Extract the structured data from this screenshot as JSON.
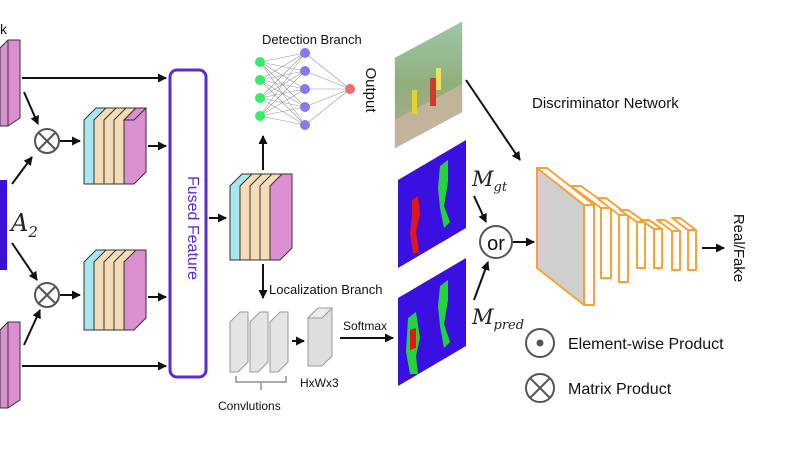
{
  "labels": {
    "top_left_fragment": "k",
    "a2_base": "A",
    "a2_sub": "2",
    "fused_feature": "Fused Feature",
    "detection_branch": "Detection Branch",
    "output": "Output",
    "localization_branch": "Localization Branch",
    "softmax": "Softmax",
    "hxwx3": "HxWx3",
    "convolutions": "Convlutions",
    "m_gt_base": "M",
    "m_gt_sub": "gt",
    "m_pred_base": "M",
    "m_pred_sub": "pred",
    "or": "or",
    "discriminator_network": "Discriminator Network",
    "real_fake": "Real/Fake",
    "legend_elementwise": "Element-wise Product",
    "legend_matrix": "Matrix Product"
  },
  "colors": {
    "fused_border": "#5b2bd6",
    "fused_text": "#5b2bd6",
    "block_pink": "#d98fd0",
    "block_cyan": "#a7e6ee",
    "block_peach": "#f6dcb6",
    "mask_bg": "#3a10e0",
    "mask_red": "#e0161a",
    "mask_green": "#22d43a",
    "disc_orange": "#f2a43a",
    "input_node_green": "#33ee66",
    "hidden_node_purple": "#8b78ee",
    "output_node_red": "#f26b6b"
  }
}
